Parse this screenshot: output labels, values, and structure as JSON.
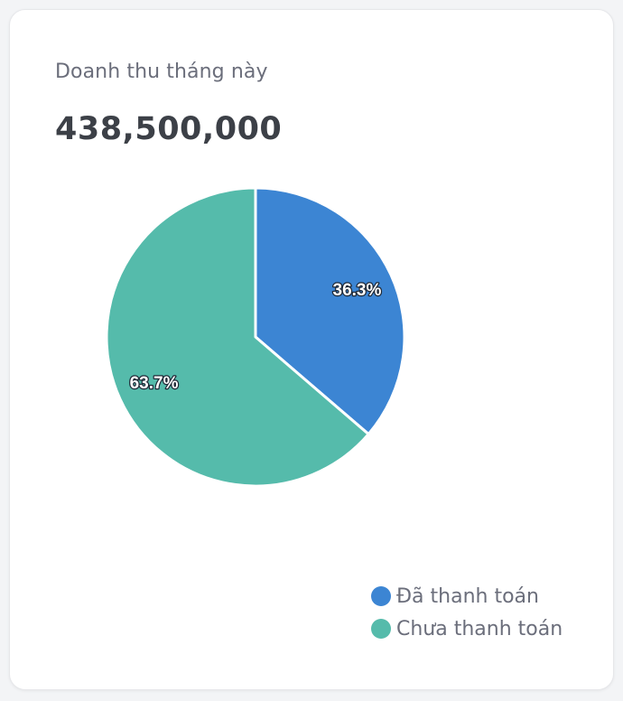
{
  "card": {
    "subtitle": "Doanh thu tháng này",
    "amount": "438,500,000"
  },
  "chart_data": {
    "type": "pie",
    "title": "",
    "slices": [
      {
        "name": "Đã thanh toán",
        "value": 36.3,
        "label": "36.3%",
        "color": "#3c85d3"
      },
      {
        "name": "Chưa thanh toán",
        "value": 63.7,
        "label": "63.7%",
        "color": "#55bbab"
      }
    ],
    "legend_position": "bottom-right"
  }
}
